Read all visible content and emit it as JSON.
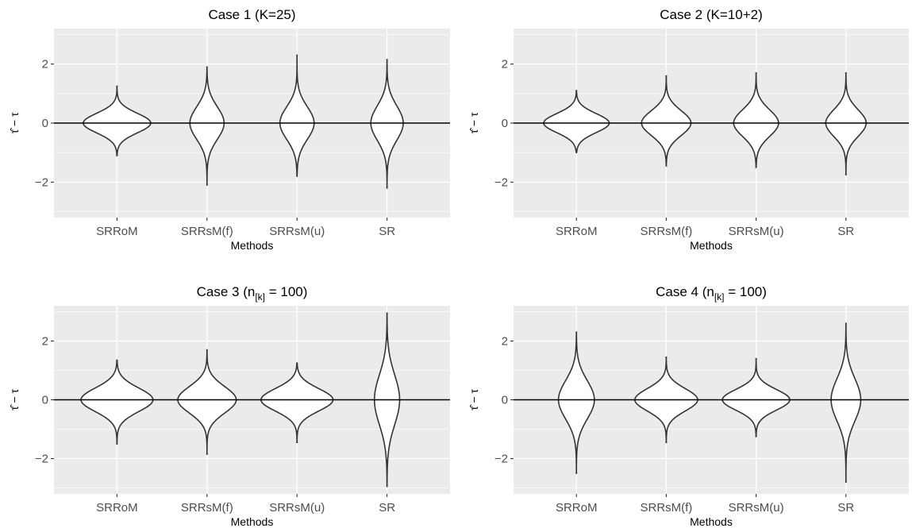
{
  "chart_data": [
    {
      "type": "violin",
      "title_main": "Case 1 (K=25)",
      "title_sub": "",
      "title_tail": "",
      "xlabel": "Methods",
      "ylabel": "τ̂ − τ",
      "ylim": [
        -3.2,
        3.2
      ],
      "y_ticks": [
        -2,
        0,
        2
      ],
      "y_tick_labels": [
        "−2",
        "0",
        "2"
      ],
      "categories": [
        "SRRoM",
        "SRRsM(f)",
        "SRRsM(u)",
        "SR"
      ],
      "reference_line_y": 0,
      "violins": [
        {
          "min": -1.1,
          "max": 1.25,
          "sd": 0.33,
          "max_width": 0.75
        },
        {
          "min": -2.1,
          "max": 1.9,
          "sd": 0.55,
          "max_width": 0.38
        },
        {
          "min": -1.8,
          "max": 2.3,
          "sd": 0.55,
          "max_width": 0.38
        },
        {
          "min": -2.2,
          "max": 2.15,
          "sd": 0.58,
          "max_width": 0.36
        }
      ]
    },
    {
      "type": "violin",
      "title_main": "Case 2 (K=10+2)",
      "title_sub": "",
      "title_tail": "",
      "xlabel": "Methods",
      "ylabel": "τ̂ − τ",
      "ylim": [
        -3.2,
        3.2
      ],
      "y_ticks": [
        -2,
        0,
        2
      ],
      "y_tick_labels": [
        "−2",
        "0",
        "2"
      ],
      "categories": [
        "SRRoM",
        "SRRsM(f)",
        "SRRsM(u)",
        "SR"
      ],
      "reference_line_y": 0,
      "violins": [
        {
          "min": -1.0,
          "max": 1.1,
          "sd": 0.32,
          "max_width": 0.73
        },
        {
          "min": -1.45,
          "max": 1.6,
          "sd": 0.42,
          "max_width": 0.55
        },
        {
          "min": -1.5,
          "max": 1.7,
          "sd": 0.45,
          "max_width": 0.5
        },
        {
          "min": -1.75,
          "max": 1.7,
          "sd": 0.45,
          "max_width": 0.45
        }
      ]
    },
    {
      "type": "violin",
      "title_main": "Case 3 (n",
      "title_sub": "[k]",
      "title_tail": " = 100)",
      "xlabel": "Methods",
      "ylabel": "τ̂ − τ",
      "ylim": [
        -3.2,
        3.2
      ],
      "y_ticks": [
        -2,
        0,
        2
      ],
      "y_tick_labels": [
        "−2",
        "0",
        "2"
      ],
      "categories": [
        "SRRoM",
        "SRRsM(f)",
        "SRRsM(u)",
        "SR"
      ],
      "reference_line_y": 0,
      "violins": [
        {
          "min": -1.5,
          "max": 1.35,
          "sd": 0.4,
          "max_width": 0.8
        },
        {
          "min": -1.85,
          "max": 1.7,
          "sd": 0.45,
          "max_width": 0.65
        },
        {
          "min": -1.45,
          "max": 1.25,
          "sd": 0.38,
          "max_width": 0.8
        },
        {
          "min": -2.95,
          "max": 2.95,
          "sd": 0.85,
          "max_width": 0.28
        }
      ]
    },
    {
      "type": "violin",
      "title_main": "Case 4 (n",
      "title_sub": "[k]",
      "title_tail": " = 100)",
      "xlabel": "Methods",
      "ylabel": "τ̂ − τ",
      "ylim": [
        -3.2,
        3.2
      ],
      "y_ticks": [
        -2,
        0,
        2
      ],
      "y_tick_labels": [
        "−2",
        "0",
        "2"
      ],
      "categories": [
        "SRRoM",
        "SRRsM(f)",
        "SRRsM(u)",
        "SR"
      ],
      "reference_line_y": 0,
      "violins": [
        {
          "min": -2.5,
          "max": 2.3,
          "sd": 0.65,
          "max_width": 0.4
        },
        {
          "min": -1.45,
          "max": 1.45,
          "sd": 0.38,
          "max_width": 0.7
        },
        {
          "min": -1.25,
          "max": 1.4,
          "sd": 0.35,
          "max_width": 0.75
        },
        {
          "min": -2.8,
          "max": 2.6,
          "sd": 0.72,
          "max_width": 0.33
        }
      ]
    }
  ],
  "colors": {
    "panel_background": "#ebebeb",
    "grid": "#ffffff",
    "violin_fill": "#ffffff",
    "violin_outline": "#333333",
    "reference_line": "#000000",
    "tick_text": "#4d4d4d"
  }
}
